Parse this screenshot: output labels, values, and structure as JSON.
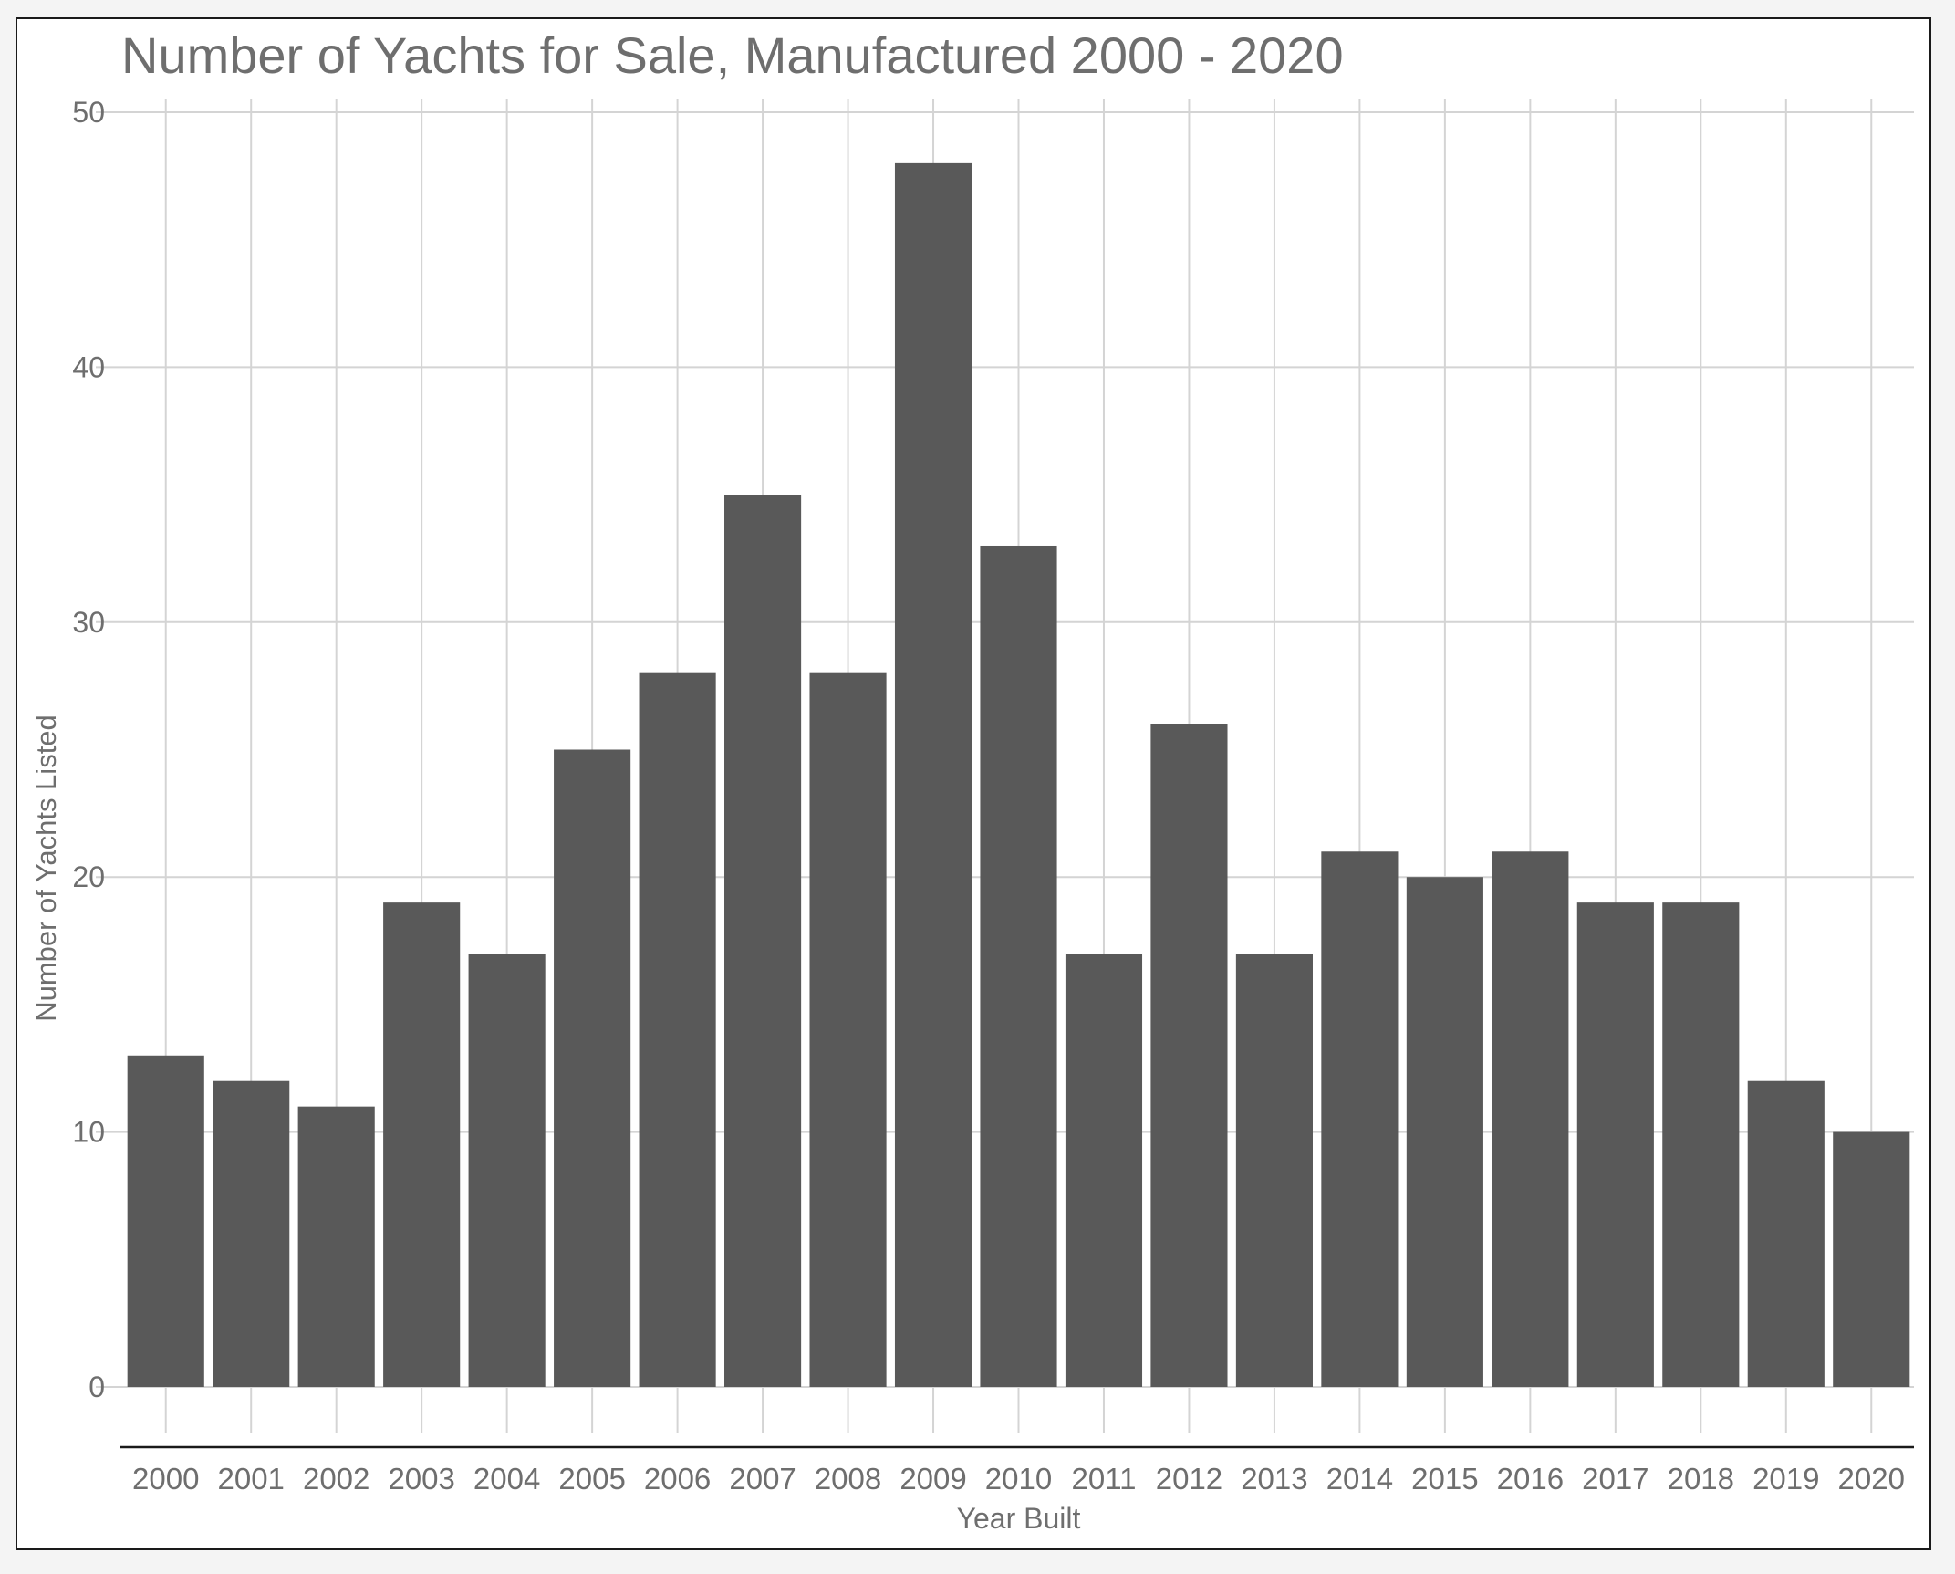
{
  "chart_data": {
    "type": "bar",
    "title": "Number of Yachts for Sale, Manufactured 2000 - 2020",
    "xlabel": "Year Built",
    "ylabel": "Number of Yachts Listed",
    "categories": [
      "2000",
      "2001",
      "2002",
      "2003",
      "2004",
      "2005",
      "2006",
      "2007",
      "2008",
      "2009",
      "2010",
      "2011",
      "2012",
      "2013",
      "2014",
      "2015",
      "2016",
      "2017",
      "2018",
      "2019",
      "2020"
    ],
    "values": [
      13,
      12,
      11,
      19,
      17,
      25,
      28,
      35,
      28,
      48,
      33,
      17,
      26,
      17,
      21,
      20,
      21,
      19,
      19,
      12,
      10
    ],
    "ylim": [
      0,
      50
    ],
    "yticks": [
      0,
      10,
      20,
      30,
      40,
      50
    ],
    "grid": true,
    "legend": "none",
    "colors": {
      "bar": "#595959",
      "grid": "#d4d4d4",
      "text": "#6e6e6e",
      "axis": "#1a1a1a"
    }
  }
}
